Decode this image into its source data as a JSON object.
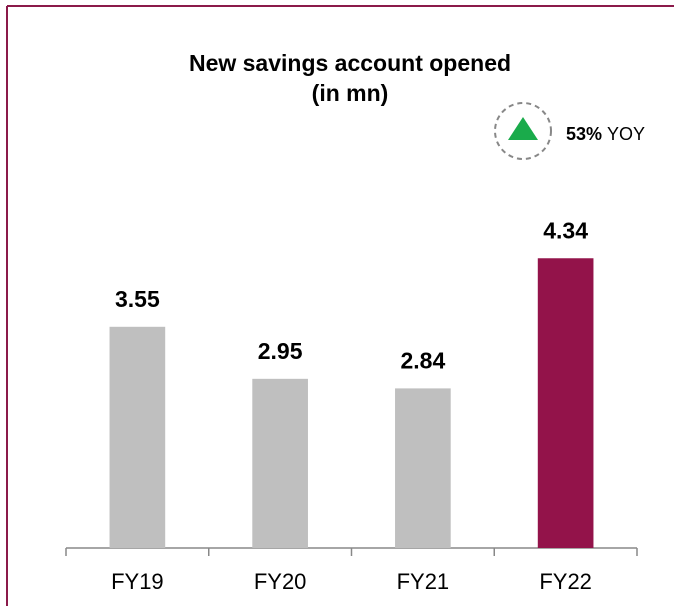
{
  "chart_data": {
    "type": "bar",
    "title": "New savings account opened",
    "subtitle": "(in mn)",
    "annotation": {
      "change": "53%",
      "label": "YOY"
    },
    "categories": [
      "FY19",
      "FY20",
      "FY21",
      "FY22"
    ],
    "values": [
      3.55,
      2.95,
      2.84,
      4.34
    ],
    "colors": [
      "#bfbfbf",
      "#bfbfbf",
      "#bfbfbf",
      "#93134a"
    ],
    "ylim": [
      1,
      5
    ],
    "grid": false
  }
}
